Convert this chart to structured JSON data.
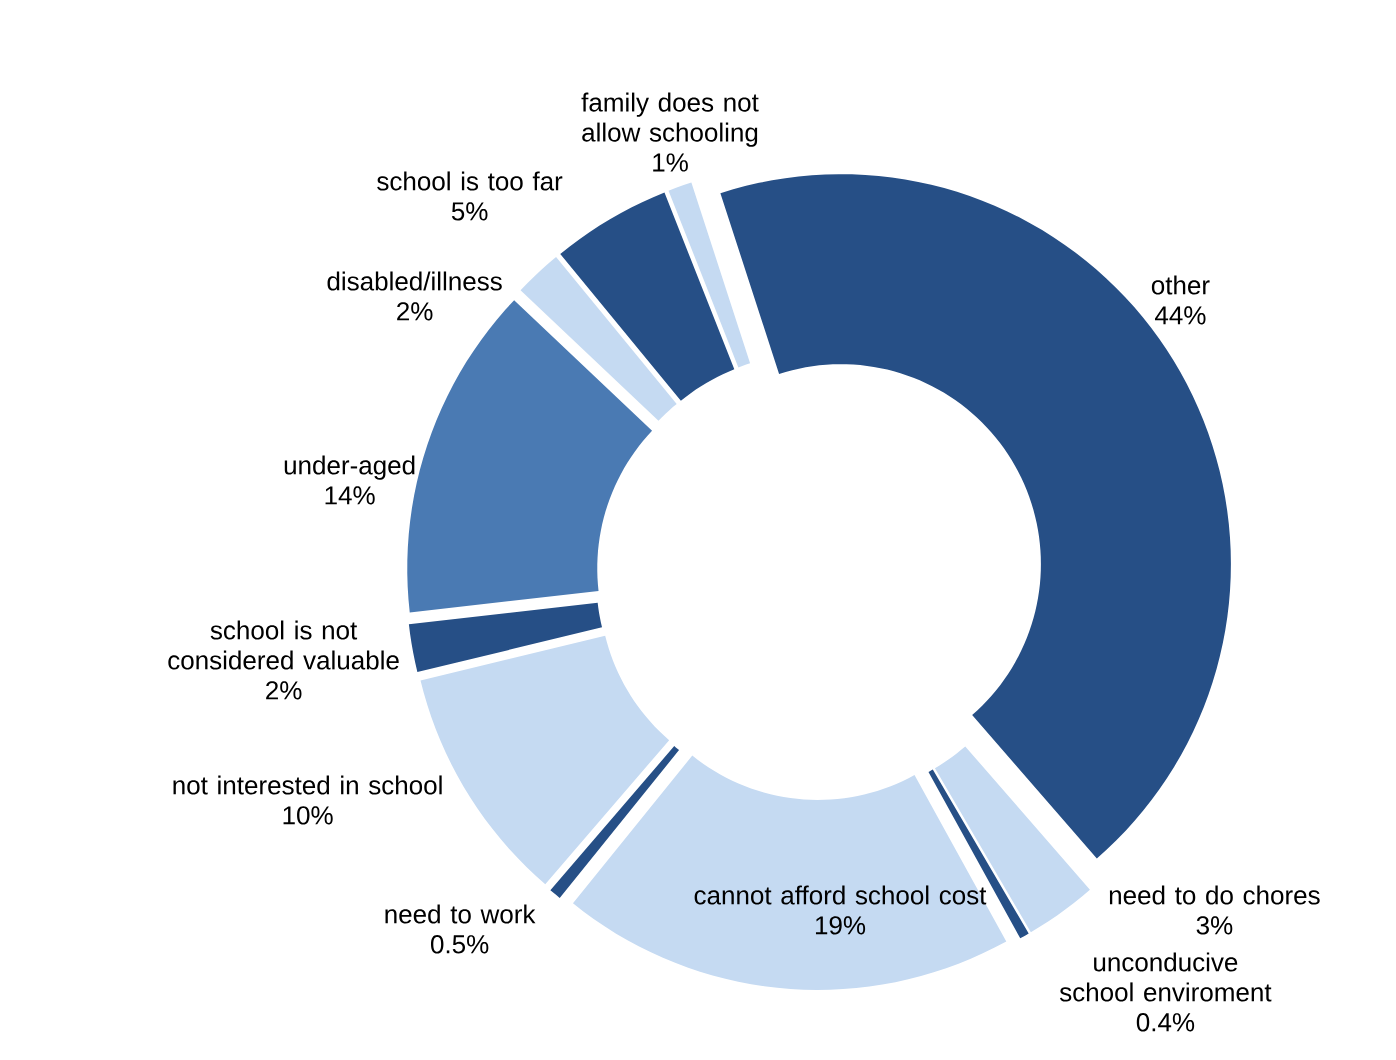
{
  "chart_data": {
    "type": "donut",
    "categories": [
      "other",
      "need to do chores",
      "unconducive school enviroment",
      "cannot afford school cost",
      "need to work",
      "not interested in school",
      "school is not considered valuable",
      "under-aged",
      "disabled/illness",
      "school is too far",
      "family does not allow schooling"
    ],
    "values": [
      44,
      3,
      0.4,
      19,
      0.5,
      10,
      2,
      14,
      2,
      5,
      1
    ],
    "value_labels": [
      "44%",
      "3%",
      "0.4%",
      "19%",
      "0.5%",
      "10%",
      "2%",
      "14%",
      "2%",
      "5%",
      "1%"
    ],
    "colors": [
      "#264f86",
      "#c5daf2",
      "#264f86",
      "#c5daf2",
      "#264f86",
      "#c5daf2",
      "#264f86",
      "#4a7ab3",
      "#c5daf2",
      "#264f86",
      "#c5daf2"
    ]
  }
}
